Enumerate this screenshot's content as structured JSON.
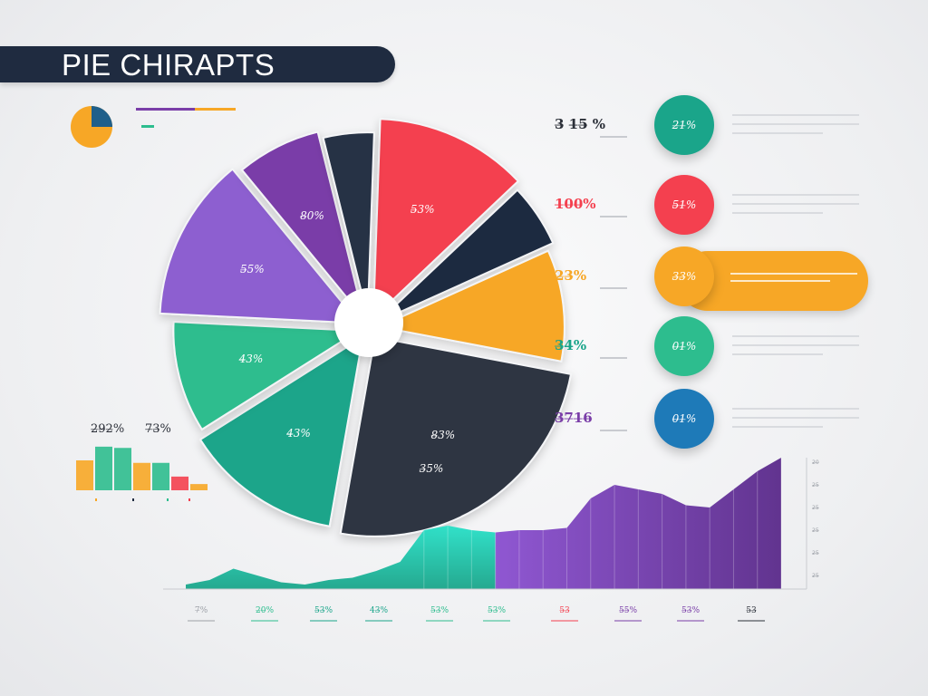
{
  "title": "PIE CHIRAPTS",
  "colors": {
    "navy": "#1f2b40",
    "red": "#f4404f",
    "orange": "#f7a726",
    "purple": "#7a3ea8",
    "lavender": "#8d5fd0",
    "green": "#2dbd8e",
    "teal": "#1aa58a",
    "dark_gray": "#2f3643",
    "blue": "#1e7ab8"
  },
  "mini_pie": {
    "colors": [
      "#1f5f8a",
      "#f7a726"
    ]
  },
  "legend_mini_lines": {
    "colors": [
      "#7a3ea8",
      "#f7a726",
      "#2dbd8e"
    ]
  },
  "chart_data": [
    {
      "type": "pie",
      "slices": [
        {
          "label": "5̶3%",
          "value": 14,
          "color": "#f4404f"
        },
        {
          "label": "",
          "value": 6,
          "color": "#1f2b40"
        },
        {
          "label": "",
          "value": 11,
          "color": "#f7a726"
        },
        {
          "label": "8̶3%",
          "value": 28,
          "color": "#2f3643"
        },
        {
          "label": "4̶3%",
          "value": 15,
          "color": "#1aa58a"
        },
        {
          "label": "4̶3%",
          "value": 11,
          "color": "#2dbd8e"
        },
        {
          "label": "5̶5%",
          "value": 15,
          "color": "#8d5fd0"
        },
        {
          "label": "8̶0%",
          "value": 8,
          "color": "#7a3ea8"
        },
        {
          "label": "",
          "value": 5,
          "color": "#273245"
        }
      ],
      "inner_labels": [
        "3̶5%"
      ]
    },
    {
      "type": "table",
      "rows": [
        {
          "label": "3̶ 1̶5̶ %",
          "badge": "2̶1̶%",
          "color": "#1aa58a",
          "label_color": "#2b2f38"
        },
        {
          "label": "1̶0̶0̶%",
          "badge": "5̶1̶%",
          "color": "#f4404f",
          "label_color": "#f4404f"
        },
        {
          "label": "2̶3̶%",
          "badge": "3̶3̶%",
          "color": "#f7a726",
          "label_color": "#f7a726"
        },
        {
          "label": "3̶4̶%",
          "badge": "0̶1̶%",
          "color": "#2dbd8e",
          "label_color": "#1aa58a"
        },
        {
          "label": "3̶7̶1̶6̶",
          "badge": "0̶1̶%",
          "color": "#1e7ab8",
          "label_color": "#7a3ea8"
        }
      ]
    },
    {
      "type": "bar",
      "label_left": "2̶9̶2̶%",
      "label_right": "7̶3̶%",
      "values": [
        24,
        35,
        34,
        22,
        22,
        11,
        5
      ],
      "colors": [
        "#f7a726",
        "#2dbd8e",
        "#2dbd8e",
        "#f7a726",
        "#2dbd8e",
        "#f4404f",
        "#f7a726"
      ],
      "ylim": [
        0,
        40
      ]
    },
    {
      "type": "area",
      "x": [
        0,
        1,
        2,
        3,
        4,
        5,
        6,
        7,
        8,
        9,
        10,
        11,
        12,
        13,
        14,
        15,
        16,
        17,
        18,
        19,
        20,
        21,
        22,
        23,
        24,
        25
      ],
      "y": [
        2,
        4,
        9,
        6,
        3,
        2,
        4,
        5,
        8,
        12,
        26,
        28,
        26,
        25,
        26,
        26,
        27,
        40,
        46,
        44,
        42,
        37,
        36,
        44,
        52,
        58
      ],
      "colors_left": [
        "#27e0c7",
        "#1aa58a"
      ],
      "colors_right": [
        "#7a3ea8",
        "#5a2a8a"
      ],
      "ylim": [
        0,
        60
      ],
      "x_tick_labels": [
        {
          "text": "7̶%",
          "color": "#9da1a8"
        },
        {
          "text": "2̶0̶%",
          "color": "#2dbd8e"
        },
        {
          "text": "5̶3̶%",
          "color": "#1aa58a"
        },
        {
          "text": "4̶3̶%",
          "color": "#1aa58a"
        },
        {
          "text": "5̶3̶%",
          "color": "#2dbd8e"
        },
        {
          "text": "5̶3̶%",
          "color": "#2dbd8e"
        },
        {
          "text": "5̶3̶",
          "color": "#f4404f"
        },
        {
          "text": "5̶5̶%",
          "color": "#7a3ea8"
        },
        {
          "text": "5̶3̶%",
          "color": "#7a3ea8"
        },
        {
          "text": "5̶3̶",
          "color": "#2b2f38"
        }
      ],
      "y_tick_labels": [
        "2̶0̶",
        "2̶5̶",
        "2̶5̶",
        "2̶5̶",
        "2̶5̶",
        "2̶5̶"
      ]
    }
  ]
}
